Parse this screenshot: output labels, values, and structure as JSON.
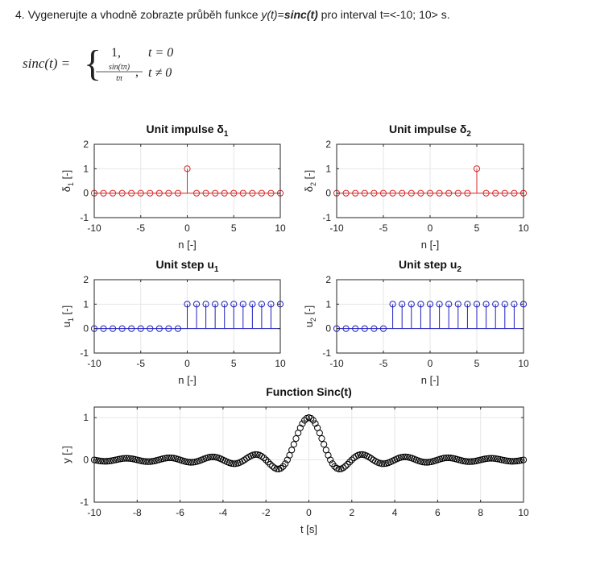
{
  "task": {
    "number": "4.",
    "text_before": "Vygenerujte a vhodně zobrazte průběh funkce ",
    "function": "y(t)",
    "equals": "=",
    "function_rhs": "sinc(t)",
    "text_after": " pro interval t=<-10; 10> s."
  },
  "formula": {
    "lhs": "sinc(t) =",
    "case1_value": "1,",
    "case1_condition": "t = 0",
    "case2_numerator": "sin(tπ)",
    "case2_denominator": "tπ",
    "case2_comma": ",",
    "case2_condition": "t ≠ 0"
  },
  "colors": {
    "impulse": "#d62728",
    "step": "#1f1fbf",
    "sinc": "#000000",
    "grid": "#e6e6e6",
    "axes": "#262626"
  },
  "chart_data": [
    {
      "id": "delta1",
      "type": "stem",
      "title": "Unit impulse δ",
      "title_sub": "1",
      "xlabel": "n [-]",
      "ylabel": "δ",
      "ylabel_sub": "1",
      "ylabel_suffix": " [-]",
      "xlim": [
        -10,
        10
      ],
      "ylim": [
        -1,
        2
      ],
      "xticks": [
        -10,
        -5,
        0,
        5,
        10
      ],
      "yticks": [
        -1,
        0,
        1,
        2
      ],
      "grid": true,
      "color": "#d62728",
      "x": [
        -10,
        -9,
        -8,
        -7,
        -6,
        -5,
        -4,
        -3,
        -2,
        -1,
        0,
        1,
        2,
        3,
        4,
        5,
        6,
        7,
        8,
        9,
        10
      ],
      "y": [
        0,
        0,
        0,
        0,
        0,
        0,
        0,
        0,
        0,
        0,
        1,
        0,
        0,
        0,
        0,
        0,
        0,
        0,
        0,
        0,
        0
      ]
    },
    {
      "id": "delta2",
      "type": "stem",
      "title": "Unit impulse δ",
      "title_sub": "2",
      "xlabel": "n [-]",
      "ylabel": "δ",
      "ylabel_sub": "2",
      "ylabel_suffix": " [-]",
      "xlim": [
        -10,
        10
      ],
      "ylim": [
        -1,
        2
      ],
      "xticks": [
        -10,
        -5,
        0,
        5,
        10
      ],
      "yticks": [
        -1,
        0,
        1,
        2
      ],
      "grid": true,
      "color": "#d62728",
      "x": [
        -10,
        -9,
        -8,
        -7,
        -6,
        -5,
        -4,
        -3,
        -2,
        -1,
        0,
        1,
        2,
        3,
        4,
        5,
        6,
        7,
        8,
        9,
        10
      ],
      "y": [
        0,
        0,
        0,
        0,
        0,
        0,
        0,
        0,
        0,
        0,
        0,
        0,
        0,
        0,
        0,
        1,
        0,
        0,
        0,
        0,
        0
      ]
    },
    {
      "id": "u1",
      "type": "stem",
      "title": "Unit step u",
      "title_sub": "1",
      "xlabel": "n [-]",
      "ylabel": "u",
      "ylabel_sub": "1",
      "ylabel_suffix": " [-]",
      "xlim": [
        -10,
        10
      ],
      "ylim": [
        -1,
        2
      ],
      "xticks": [
        -10,
        -5,
        0,
        5,
        10
      ],
      "yticks": [
        -1,
        0,
        1,
        2
      ],
      "grid": true,
      "color": "#1f1fbf",
      "x": [
        -10,
        -9,
        -8,
        -7,
        -6,
        -5,
        -4,
        -3,
        -2,
        -1,
        0,
        1,
        2,
        3,
        4,
        5,
        6,
        7,
        8,
        9,
        10
      ],
      "y": [
        0,
        0,
        0,
        0,
        0,
        0,
        0,
        0,
        0,
        0,
        1,
        1,
        1,
        1,
        1,
        1,
        1,
        1,
        1,
        1,
        1
      ]
    },
    {
      "id": "u2",
      "type": "stem",
      "title": "Unit step u",
      "title_sub": "2",
      "xlabel": "n [-]",
      "ylabel": "u",
      "ylabel_sub": "2",
      "ylabel_suffix": " [-]",
      "xlim": [
        -10,
        10
      ],
      "ylim": [
        -1,
        2
      ],
      "xticks": [
        -10,
        -5,
        0,
        5,
        10
      ],
      "yticks": [
        -1,
        0,
        1,
        2
      ],
      "grid": true,
      "color": "#1f1fbf",
      "x": [
        -10,
        -9,
        -8,
        -7,
        -6,
        -5,
        -4,
        -3,
        -2,
        -1,
        0,
        1,
        2,
        3,
        4,
        5,
        6,
        7,
        8,
        9,
        10
      ],
      "y": [
        0,
        0,
        0,
        0,
        0,
        0,
        1,
        1,
        1,
        1,
        1,
        1,
        1,
        1,
        1,
        1,
        1,
        1,
        1,
        1,
        1
      ]
    },
    {
      "id": "sinc",
      "type": "scatter",
      "title": "Function Sinc(t)",
      "title_sub": "",
      "xlabel": "t [s]",
      "ylabel": "y",
      "ylabel_sub": "",
      "ylabel_suffix": " [-]",
      "xlim": [
        -10,
        10
      ],
      "ylim": [
        -1,
        1.25
      ],
      "xticks": [
        -10,
        -8,
        -6,
        -4,
        -2,
        0,
        2,
        4,
        6,
        8,
        10
      ],
      "yticks": [
        -1,
        0,
        1
      ],
      "grid": true,
      "color": "#000000",
      "function": "sinc(t) = sin(πt)/(πt), sinc(0) = 1",
      "t_start": -10,
      "t_end": 10,
      "t_step": 0.1
    }
  ]
}
